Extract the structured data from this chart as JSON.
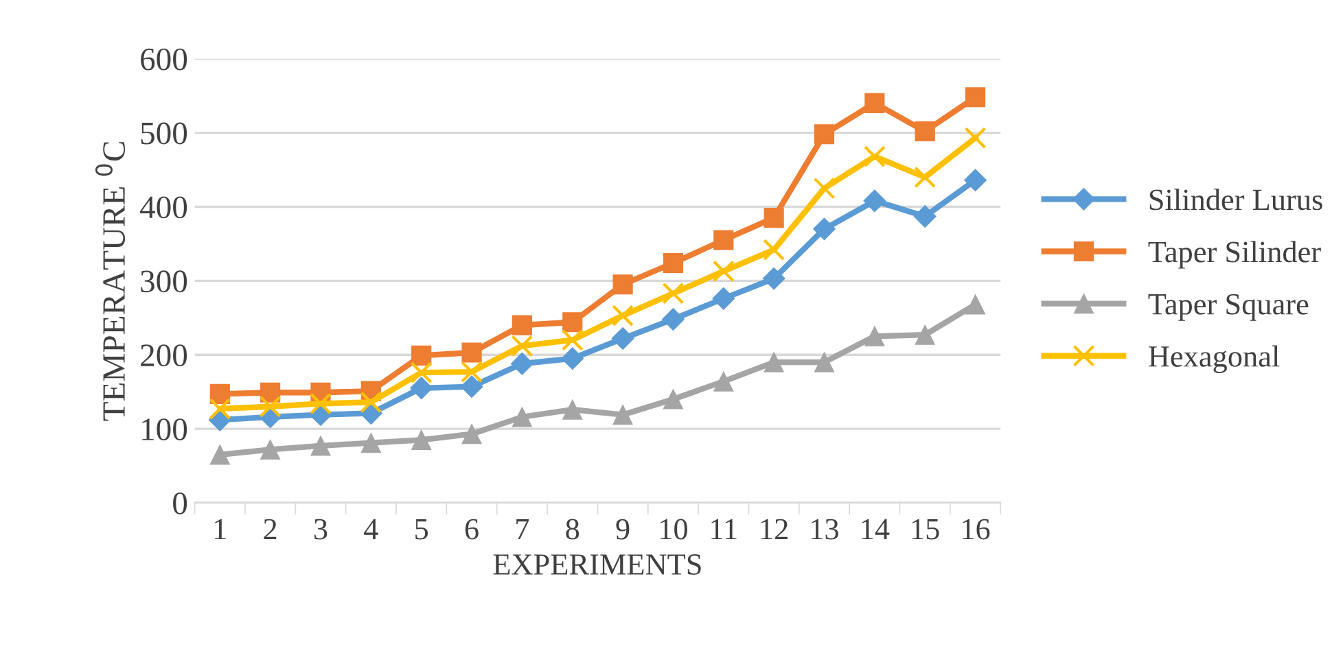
{
  "chart_data": {
    "type": "line",
    "xlabel": "EXPERIMENTS",
    "ylabel": "TEMPERATURE $^{0}$C",
    "categories": [
      "1",
      "2",
      "3",
      "4",
      "5",
      "6",
      "7",
      "8",
      "9",
      "10",
      "11",
      "12",
      "13",
      "14",
      "15",
      "16"
    ],
    "ylim": [
      0,
      600
    ],
    "yticks": [
      0,
      100,
      200,
      300,
      400,
      500,
      600
    ],
    "grid": "y",
    "legend": "right",
    "line_style": "solid",
    "series": [
      {
        "name": "Silinder Lurus",
        "color": "#5b9bd5",
        "marker": "diamond",
        "values": [
          112,
          116,
          119,
          121,
          155,
          157,
          188,
          195,
          222,
          248,
          276,
          303,
          370,
          408,
          387,
          436
        ]
      },
      {
        "name": "Taper Silinder",
        "color": "#ed7d31",
        "marker": "square",
        "values": [
          147,
          149,
          149,
          151,
          199,
          203,
          240,
          244,
          295,
          324,
          355,
          385,
          498,
          540,
          502,
          548
        ]
      },
      {
        "name": "Taper Square",
        "color": "#a5a5a5",
        "marker": "triangle",
        "values": [
          65,
          72,
          77,
          81,
          85,
          93,
          116,
          126,
          119,
          140,
          164,
          190,
          190,
          225,
          227,
          268
        ]
      },
      {
        "name": "Hexagonal",
        "color": "#ffc000",
        "marker": "cross",
        "values": [
          127,
          130,
          134,
          136,
          176,
          177,
          212,
          220,
          253,
          283,
          313,
          342,
          425,
          468,
          440,
          493
        ]
      }
    ]
  }
}
